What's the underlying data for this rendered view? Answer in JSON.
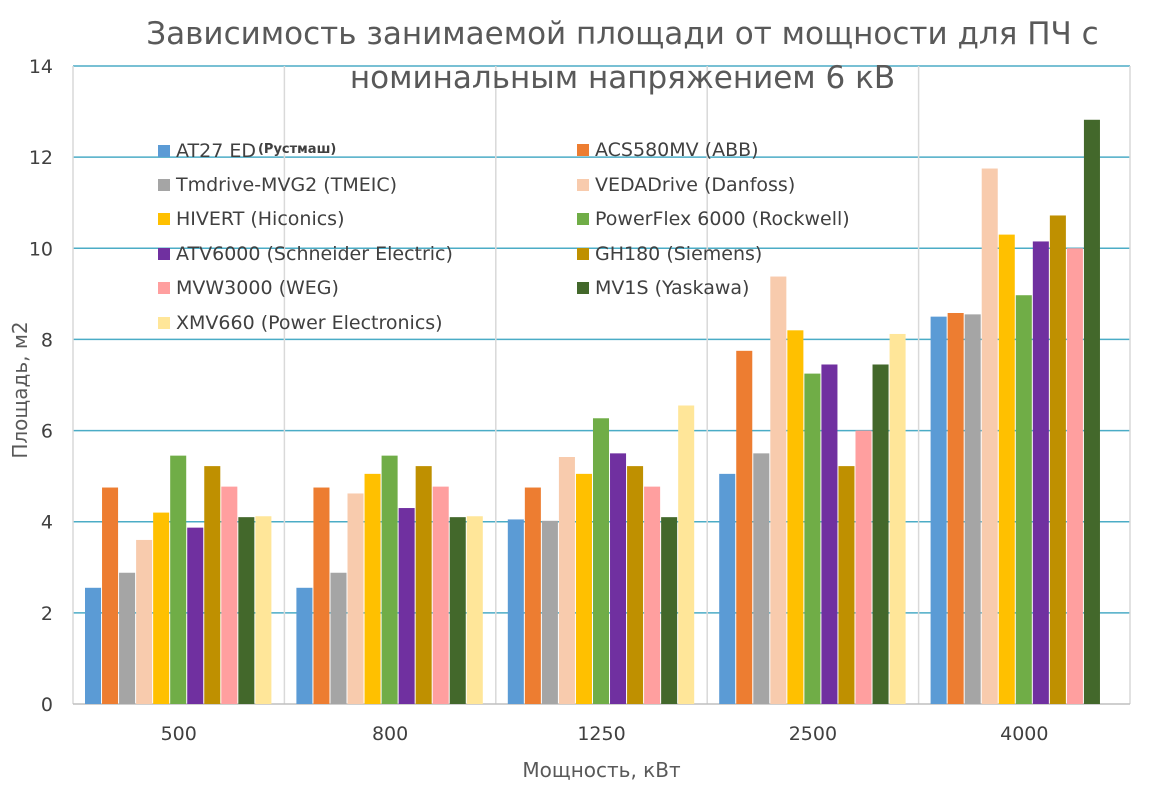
{
  "chart_data": {
    "type": "bar",
    "title_lines": [
      "Зависимость занимаемой площади от мощности для ПЧ с",
      "номинальным напряжением 6 кВ"
    ],
    "xlabel": "Мощность, кВт",
    "ylabel": "Площадь, м2",
    "ylim": [
      0,
      14
    ],
    "yticks": [
      "0",
      "2",
      "4",
      "6",
      "8",
      "10",
      "12",
      "14"
    ],
    "categories": [
      "500",
      "800",
      "1250",
      "2500",
      "4000"
    ],
    "legend_position": "top-left inside plot",
    "series": [
      {
        "name": "AT27 ED",
        "note": "(Рустмаш)",
        "color": "#5b9bd5",
        "values": [
          2.55,
          2.55,
          4.05,
          5.05,
          8.5
        ]
      },
      {
        "name": "ACS580MV (ABB)",
        "color": "#ed7d31",
        "values": [
          4.75,
          4.75,
          4.75,
          7.75,
          8.58
        ]
      },
      {
        "name": "Tmdrive-MVG2 (TMEIC)",
        "color": "#a5a5a5",
        "values": [
          2.88,
          2.88,
          4.02,
          5.5,
          8.55
        ]
      },
      {
        "name": "VEDADrive (Danfoss)",
        "color": "#f8cbad",
        "values": [
          3.6,
          4.62,
          5.42,
          9.38,
          11.75
        ]
      },
      {
        "name": "HIVERT (Hiconics)",
        "color": "#ffc000",
        "values": [
          4.2,
          5.05,
          5.05,
          8.2,
          10.3
        ]
      },
      {
        "name": "PowerFlex 6000 (Rockwell)",
        "color": "#70ad47",
        "values": [
          5.45,
          5.45,
          6.27,
          7.25,
          8.97
        ]
      },
      {
        "name": "ATV6000 (Schneider Electric)",
        "color": "#7030a0",
        "values": [
          3.87,
          4.3,
          5.5,
          7.45,
          10.15
        ]
      },
      {
        "name": "GH180 (Siemens)",
        "color": "#bf9000",
        "values": [
          5.22,
          5.22,
          5.22,
          5.22,
          10.72
        ]
      },
      {
        "name": "MVW3000 (WEG)",
        "color": "#ff9f9f",
        "values": [
          4.77,
          4.77,
          4.77,
          6.0,
          10.0
        ]
      },
      {
        "name": "MV1S (Yaskawa)",
        "color": "#43682b",
        "values": [
          4.1,
          4.1,
          4.1,
          7.45,
          12.82
        ]
      },
      {
        "name": "XMV660 (Power Electronics)",
        "color": "#ffe699",
        "values": [
          4.12,
          4.12,
          6.55,
          8.12,
          null
        ]
      }
    ],
    "gridlines": true,
    "grid_color": "#4bacc6"
  }
}
